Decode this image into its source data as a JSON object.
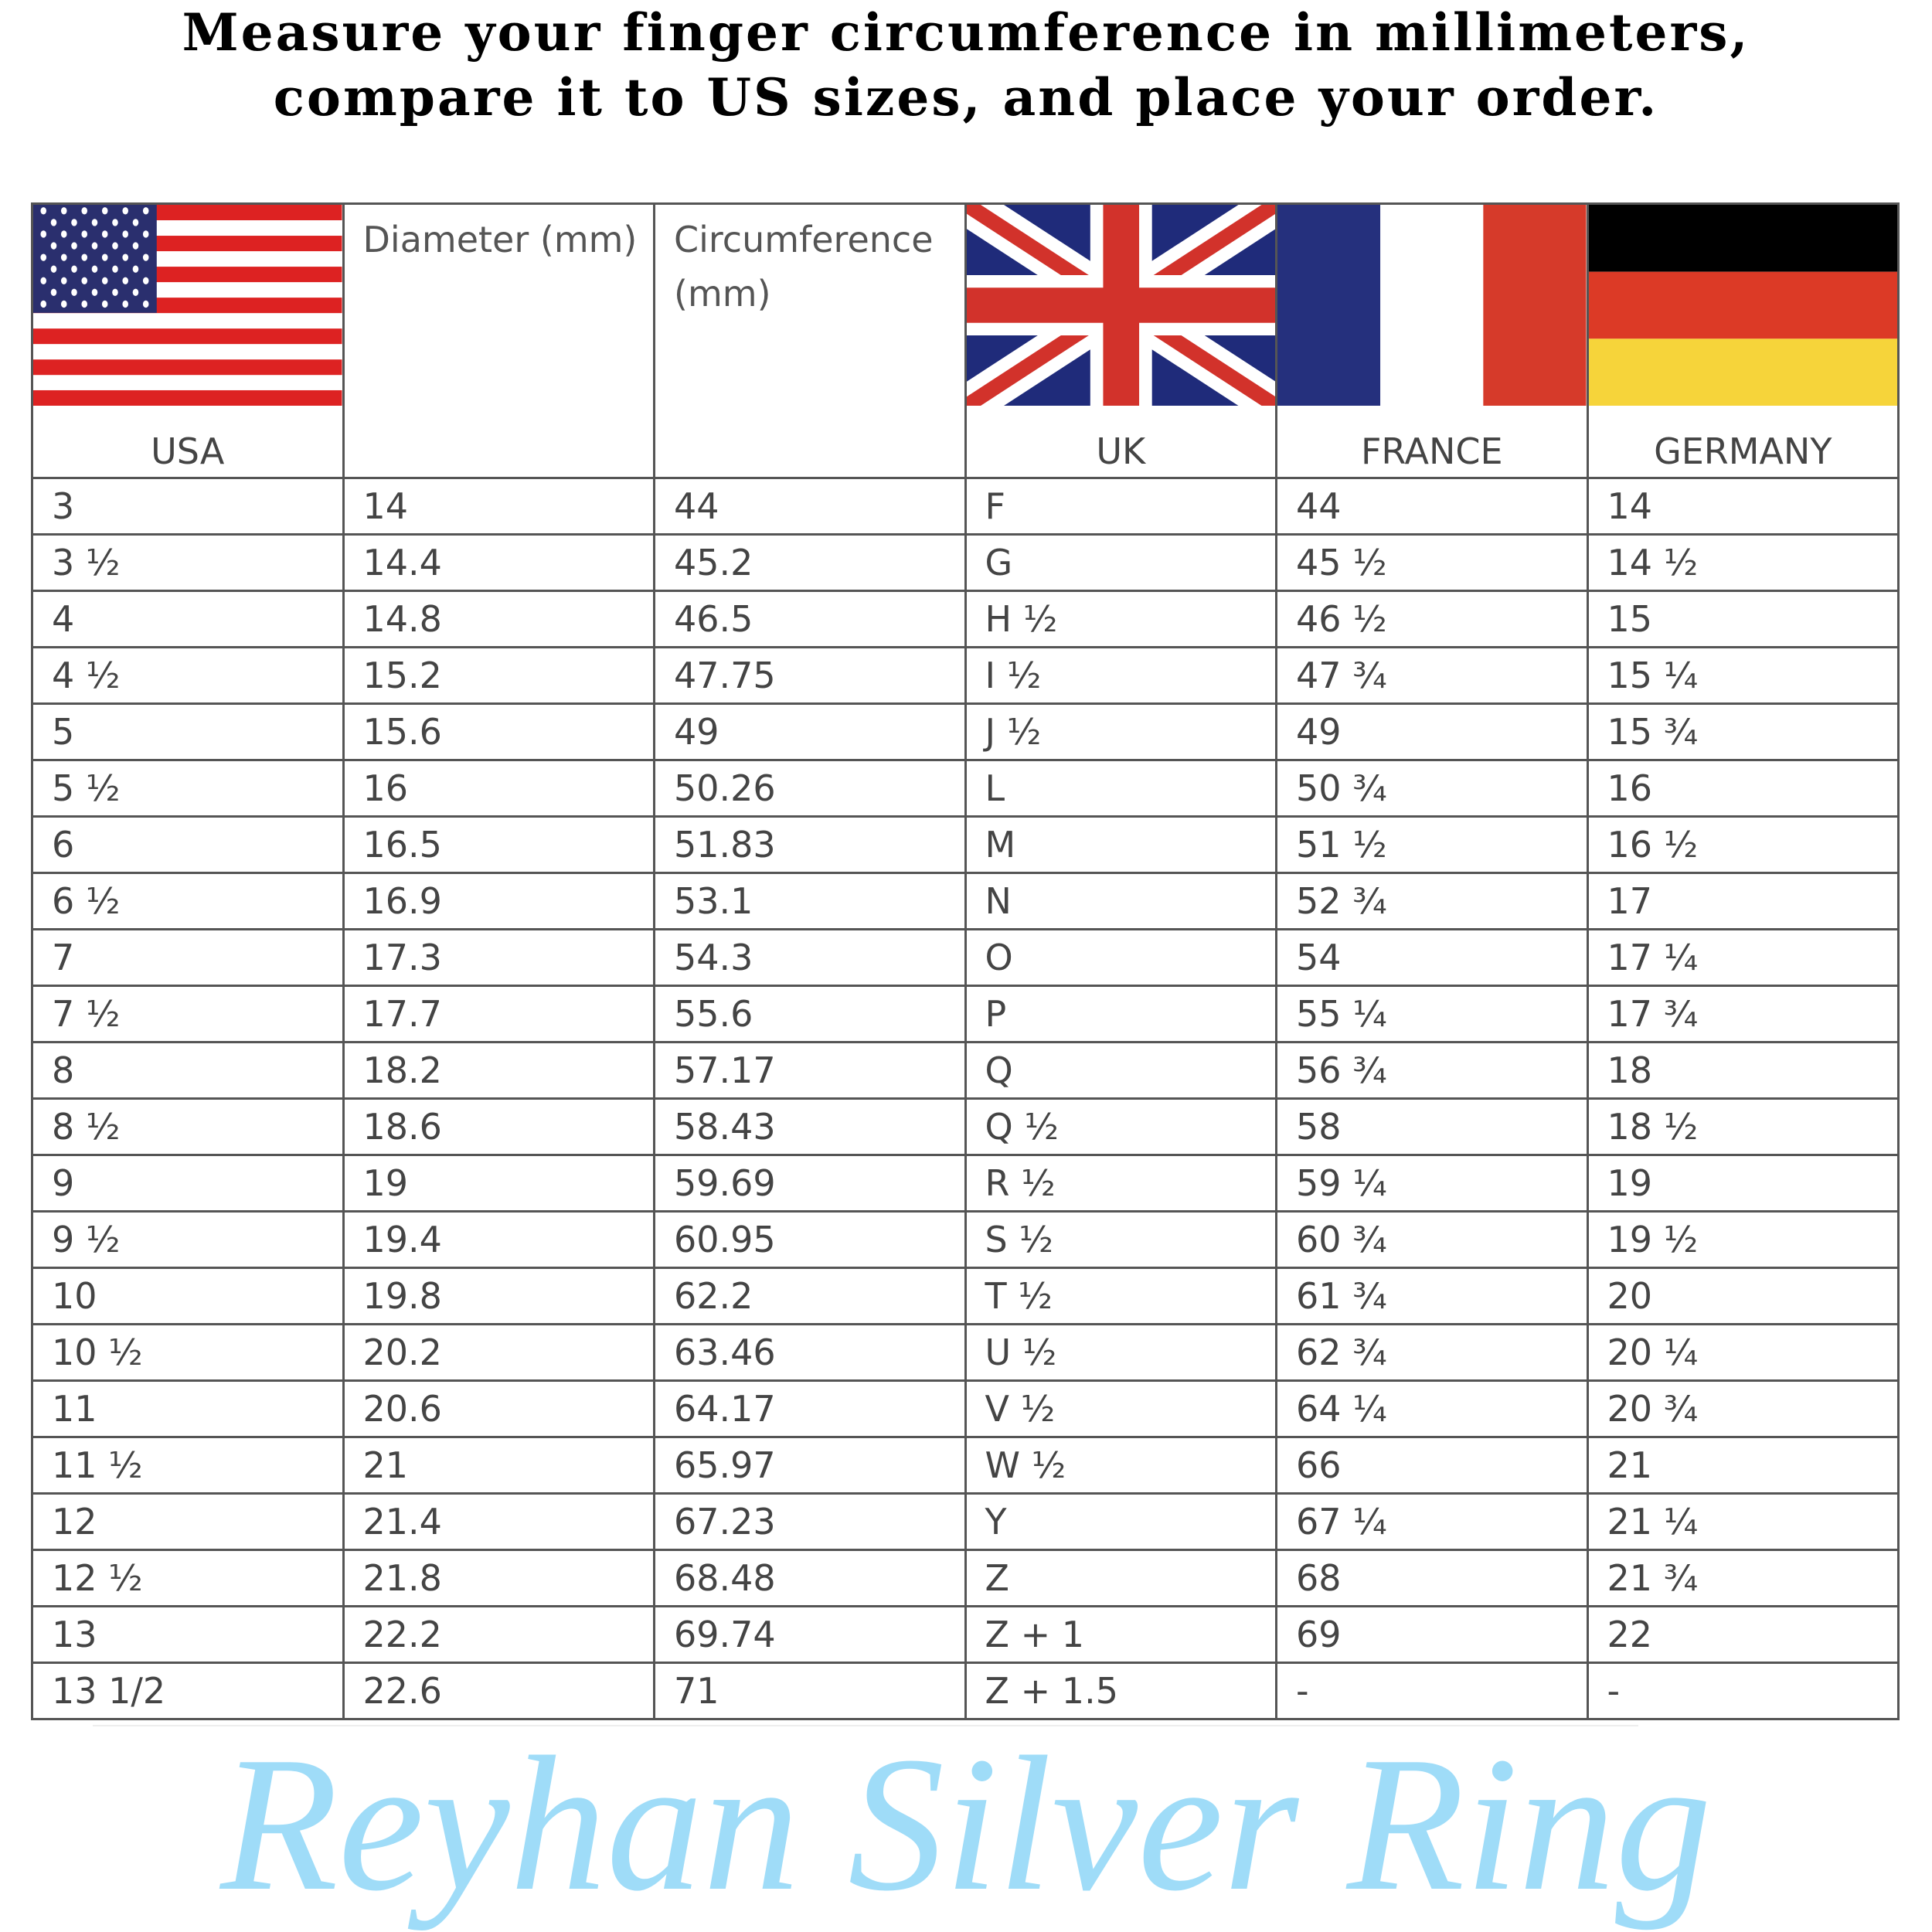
{
  "title": "Measure your finger circumference in millimeters, compare it to US sizes, and place your order.",
  "headers": [
    "USA",
    "Diameter (mm)",
    "Circumference (mm)",
    "UK",
    "FRANCE",
    "GERMANY"
  ],
  "flags": [
    "us-flag",
    "",
    "",
    "uk-flag",
    "france-flag",
    "germany-flag"
  ],
  "rows": [
    [
      "3",
      "14",
      "44",
      "F",
      "44",
      "14"
    ],
    [
      "3 ½",
      "14.4",
      "45.2",
      "G",
      "45 ½",
      "14 ½"
    ],
    [
      "4",
      "14.8",
      "46.5",
      "H ½",
      "46 ½",
      "15"
    ],
    [
      "4 ½",
      "15.2",
      "47.75",
      "I ½",
      "47 ¾",
      "15 ¼"
    ],
    [
      "5",
      "15.6",
      "49",
      "J ½",
      "49",
      "15 ¾"
    ],
    [
      "5 ½",
      "16",
      "50.26",
      "L",
      "50 ¾",
      "16"
    ],
    [
      "6",
      "16.5",
      "51.83",
      "M",
      "51 ½",
      "16 ½"
    ],
    [
      "6 ½",
      "16.9",
      "53.1",
      "N",
      "52 ¾",
      "17"
    ],
    [
      "7",
      "17.3",
      "54.3",
      "O",
      "54",
      "17 ¼"
    ],
    [
      "7 ½",
      "17.7",
      "55.6",
      "P",
      "55 ¼",
      "17 ¾"
    ],
    [
      "8",
      "18.2",
      "57.17",
      "Q",
      "56 ¾",
      "18"
    ],
    [
      "8 ½",
      "18.6",
      "58.43",
      "Q ½",
      "58",
      "18 ½"
    ],
    [
      "9",
      "19",
      "59.69",
      "R ½",
      "59 ¼",
      "19"
    ],
    [
      "9 ½",
      "19.4",
      "60.95",
      "S ½",
      "60 ¾",
      "19 ½"
    ],
    [
      "10",
      "19.8",
      "62.2",
      "T ½",
      "61 ¾",
      "20"
    ],
    [
      "10 ½",
      "20.2",
      "63.46",
      "U ½",
      "62 ¾",
      "20 ¼"
    ],
    [
      "11",
      "20.6",
      "64.17",
      "V ½",
      "64 ¼",
      "20 ¾"
    ],
    [
      "11 ½",
      "21",
      "65.97",
      "W ½",
      "66",
      "21"
    ],
    [
      "12",
      "21.4",
      "67.23",
      "Y",
      "67 ¼",
      "21 ¼"
    ],
    [
      "12 ½",
      "21.8",
      "68.48",
      "Z",
      "68",
      "21 ¾"
    ],
    [
      "13",
      "22.2",
      "69.74",
      "Z + 1",
      "69",
      "22"
    ],
    [
      "13 1/2",
      "22.6",
      "71",
      "Z + 1.5",
      "-",
      "-"
    ]
  ],
  "watermark": "Reyhan Silver Ring"
}
